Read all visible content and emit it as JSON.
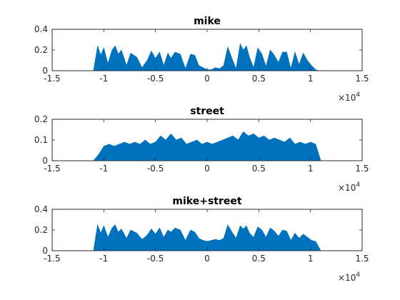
{
  "chart_data": [
    {
      "type": "area",
      "title": "mike",
      "xlim": [
        -15000,
        15000
      ],
      "ylim": [
        0,
        0.4
      ],
      "xticks": [
        -15000,
        -10000,
        -5000,
        0,
        5000,
        10000,
        15000
      ],
      "xtick_labels": [
        "-1.5",
        "-1",
        "-0.5",
        "0",
        "0.5",
        "1",
        "1.5"
      ],
      "yticks": [
        0,
        0.2,
        0.4
      ],
      "ytick_labels": [
        "0",
        "0.2",
        "0.4"
      ],
      "x_multiplier": {
        "base": "×10",
        "exp": "4"
      },
      "color": "#0072BD",
      "grid": false,
      "series": [
        {
          "x": [
            -11000,
            -10600,
            -10300,
            -10000,
            -9600,
            -9200,
            -8900,
            -8600,
            -8300,
            -7800,
            -7400,
            -6800,
            -6300,
            -5800,
            -5400,
            -5000,
            -4600,
            -4200,
            -3800,
            -3500,
            -3100,
            -2600,
            -2100,
            -1600,
            -1200,
            -800,
            -400,
            0,
            400,
            800,
            1200,
            1600,
            2000,
            2400,
            2800,
            3200,
            3500,
            3800,
            4100,
            4500,
            4900,
            5300,
            5700,
            6100,
            6500,
            6900,
            7300,
            7700,
            8100,
            8500,
            8900,
            9300,
            9700,
            10100,
            10500,
            10800
          ],
          "y": [
            0.0,
            0.24,
            0.15,
            0.22,
            0.07,
            0.2,
            0.24,
            0.16,
            0.2,
            0.05,
            0.17,
            0.13,
            0.03,
            0.1,
            0.19,
            0.12,
            0.18,
            0.05,
            0.17,
            0.12,
            0.18,
            0.16,
            0.02,
            0.16,
            0.15,
            0.05,
            0.03,
            0.01,
            0.01,
            0.03,
            0.02,
            0.05,
            0.23,
            0.12,
            0.02,
            0.26,
            0.2,
            0.24,
            0.13,
            0.03,
            0.22,
            0.16,
            0.04,
            0.2,
            0.15,
            0.08,
            0.18,
            0.18,
            0.02,
            0.18,
            0.06,
            0.17,
            0.1,
            0.05,
            0.01,
            0.0
          ]
        }
      ]
    },
    {
      "type": "area",
      "title": "street",
      "xlim": [
        -15000,
        15000
      ],
      "ylim": [
        0,
        0.2
      ],
      "xticks": [
        -15000,
        -10000,
        -5000,
        0,
        5000,
        10000,
        15000
      ],
      "xtick_labels": [
        "-1.5",
        "-1",
        "-0.5",
        "0",
        "0.5",
        "1",
        "1.5"
      ],
      "yticks": [
        0,
        0.1,
        0.2
      ],
      "ytick_labels": [
        "0",
        "0.1",
        "0.2"
      ],
      "x_multiplier": {
        "base": "×10",
        "exp": "4"
      },
      "color": "#0072BD",
      "grid": false,
      "series": [
        {
          "x": [
            -11000,
            -10500,
            -10000,
            -9500,
            -9000,
            -8500,
            -8000,
            -7500,
            -7000,
            -6500,
            -6000,
            -5500,
            -5000,
            -4500,
            -4000,
            -3500,
            -3000,
            -2500,
            -2000,
            -1500,
            -1000,
            -500,
            0,
            500,
            1000,
            1500,
            2000,
            2500,
            3000,
            3500,
            4000,
            4500,
            5000,
            5500,
            6000,
            6500,
            7000,
            7500,
            8000,
            8500,
            9000,
            9500,
            10000,
            10500,
            11000
          ],
          "y": [
            0.0,
            0.03,
            0.07,
            0.08,
            0.07,
            0.08,
            0.09,
            0.08,
            0.09,
            0.08,
            0.1,
            0.08,
            0.09,
            0.12,
            0.1,
            0.13,
            0.1,
            0.11,
            0.08,
            0.09,
            0.1,
            0.08,
            0.09,
            0.08,
            0.09,
            0.1,
            0.11,
            0.12,
            0.1,
            0.14,
            0.12,
            0.13,
            0.11,
            0.12,
            0.1,
            0.11,
            0.1,
            0.09,
            0.11,
            0.08,
            0.09,
            0.08,
            0.09,
            0.08,
            0.0
          ]
        }
      ]
    },
    {
      "type": "area",
      "title": "mike+street",
      "xlim": [
        -15000,
        15000
      ],
      "ylim": [
        0,
        0.4
      ],
      "xticks": [
        -15000,
        -10000,
        -5000,
        0,
        5000,
        10000,
        15000
      ],
      "xtick_labels": [
        "-1.5",
        "-1",
        "-0.5",
        "0",
        "0.5",
        "1",
        "1.5"
      ],
      "yticks": [
        0,
        0.2,
        0.4
      ],
      "ytick_labels": [
        "0",
        "0.2",
        "0.4"
      ],
      "x_multiplier": {
        "base": "×10",
        "exp": "4"
      },
      "color": "#0072BD",
      "grid": false,
      "series": [
        {
          "x": [
            -11000,
            -10600,
            -10300,
            -10000,
            -9600,
            -9200,
            -8900,
            -8600,
            -8300,
            -7800,
            -7400,
            -6800,
            -6300,
            -5800,
            -5400,
            -5000,
            -4600,
            -4200,
            -3800,
            -3500,
            -3100,
            -2600,
            -2100,
            -1600,
            -1200,
            -800,
            -400,
            0,
            400,
            800,
            1200,
            1600,
            2000,
            2400,
            2800,
            3200,
            3500,
            3800,
            4100,
            4500,
            4900,
            5300,
            5700,
            6100,
            6500,
            6900,
            7300,
            7700,
            8100,
            8500,
            8900,
            9300,
            9700,
            10100,
            10500,
            11000
          ],
          "y": [
            0.0,
            0.25,
            0.17,
            0.24,
            0.13,
            0.22,
            0.25,
            0.18,
            0.21,
            0.12,
            0.2,
            0.17,
            0.11,
            0.15,
            0.21,
            0.16,
            0.22,
            0.13,
            0.2,
            0.18,
            0.22,
            0.2,
            0.1,
            0.2,
            0.18,
            0.12,
            0.1,
            0.09,
            0.1,
            0.11,
            0.1,
            0.12,
            0.25,
            0.18,
            0.12,
            0.24,
            0.21,
            0.24,
            0.17,
            0.13,
            0.23,
            0.2,
            0.13,
            0.22,
            0.19,
            0.14,
            0.2,
            0.19,
            0.1,
            0.17,
            0.12,
            0.16,
            0.13,
            0.1,
            0.09,
            0.0
          ]
        }
      ]
    }
  ]
}
